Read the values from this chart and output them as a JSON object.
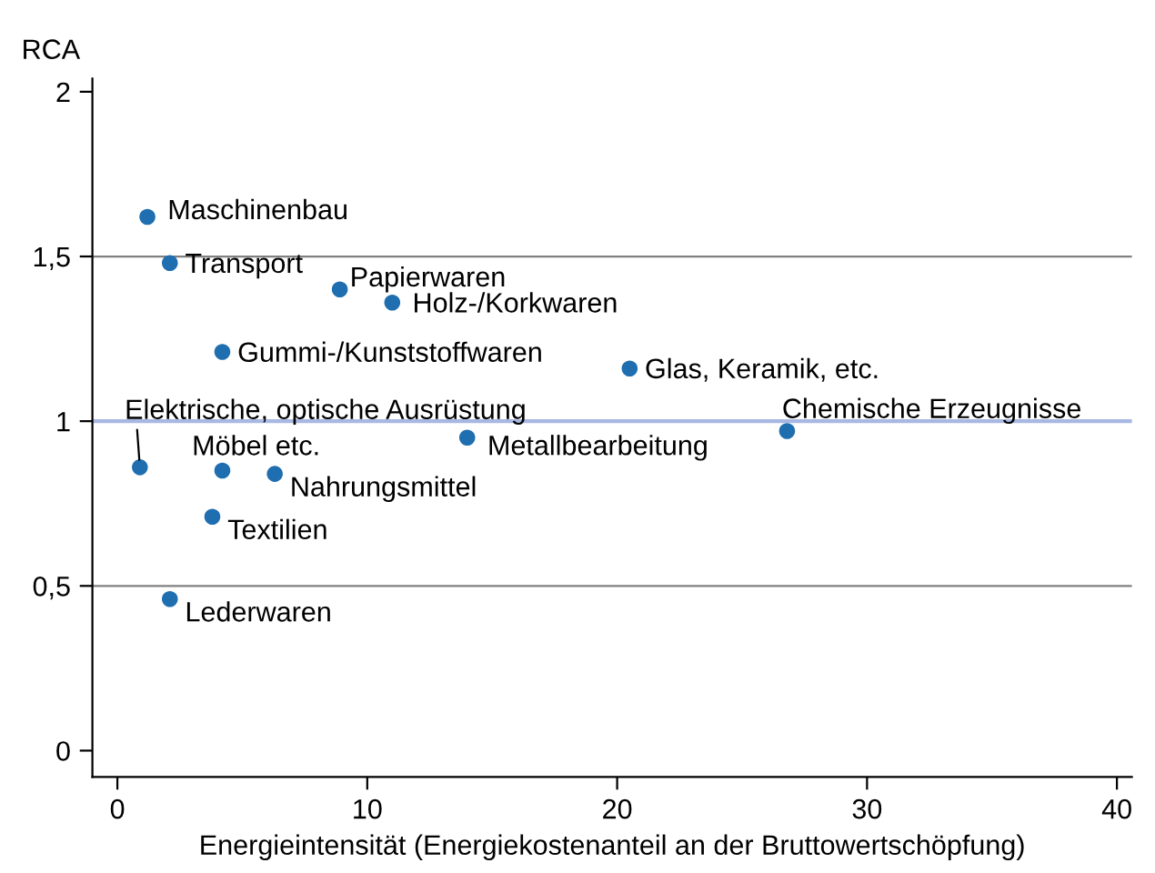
{
  "chart_data": {
    "type": "scatter",
    "xlabel": "Energieintensität (Energiekostenanteil an der Bruttowertschöpfung)",
    "ylabel": "RCA",
    "x": [
      1.2,
      2.1,
      8.9,
      11.0,
      4.2,
      20.5,
      26.8,
      14.0,
      0.9,
      4.2,
      6.3,
      3.8,
      2.1
    ],
    "series": [
      {
        "color": "#1f6eb0",
        "values": [
          1.62,
          1.48,
          1.4,
          1.36,
          1.21,
          1.16,
          0.97,
          0.95,
          0.86,
          0.85,
          0.84,
          0.71,
          0.46
        ]
      }
    ],
    "annotations": [
      {
        "text": "Maschinenbau",
        "x": 1.2,
        "y": 1.62
      },
      {
        "text": "Transport",
        "x": 2.1,
        "y": 1.48
      },
      {
        "text": "Papierwaren",
        "x": 8.9,
        "y": 1.4
      },
      {
        "text": "Holz-/Korkwaren",
        "x": 11.0,
        "y": 1.36
      },
      {
        "text": "Gummi-/Kunststoffwaren",
        "x": 4.2,
        "y": 1.21
      },
      {
        "text": "Glas, Keramik, etc.",
        "x": 20.5,
        "y": 1.16
      },
      {
        "text": "Chemische Erzeugnisse",
        "x": 26.8,
        "y": 0.97
      },
      {
        "text": "Metallbearbeitung",
        "x": 14.0,
        "y": 0.95
      },
      {
        "text": "Elektrische, optische Ausrüstung",
        "x": 0.9,
        "y": 0.86
      },
      {
        "text": "Möbel etc.",
        "x": 4.2,
        "y": 0.85
      },
      {
        "text": "Nahrungsmittel",
        "x": 6.3,
        "y": 0.84
      },
      {
        "text": "Textilien",
        "x": 3.8,
        "y": 0.71
      },
      {
        "text": "Lederwaren",
        "x": 2.1,
        "y": 0.46
      }
    ],
    "xlim": [
      -1,
      40.6
    ],
    "ylim": [
      -0.08,
      2.04
    ],
    "xticks": [
      0,
      10,
      20,
      30,
      40
    ],
    "yticks": [
      0,
      {
        "value": 0.5,
        "label": "0,5"
      },
      1,
      {
        "value": 1.5,
        "label": "1,5"
      },
      2
    ],
    "ref_lines": [
      {
        "axis": "y",
        "value": 1,
        "color": "#a8b8e2"
      },
      {
        "axis": "y",
        "value": 0.5,
        "color": "#808080"
      },
      {
        "axis": "y",
        "value": 1.5,
        "color": "#808080"
      }
    ],
    "marker": "circle"
  }
}
